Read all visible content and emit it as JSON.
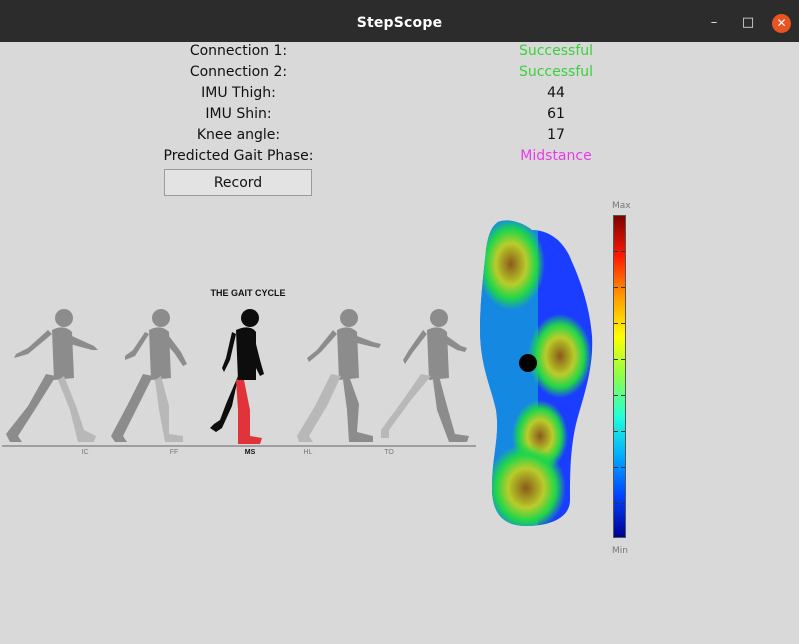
{
  "window": {
    "title": "StepScope",
    "minimize_icon": "minimize-icon",
    "maximize_icon": "maximize-icon",
    "close_icon": "close-icon"
  },
  "status": {
    "rows": [
      {
        "label": "Connection 1:",
        "value": "Successful",
        "value_color": "#3ad13a"
      },
      {
        "label": "Connection 2:",
        "value": "Successful",
        "value_color": "#3ad13a"
      },
      {
        "label": "IMU Thigh:",
        "value": "44"
      },
      {
        "label": "IMU Shin:",
        "value": "61"
      },
      {
        "label": "Knee angle:",
        "value": "17"
      },
      {
        "label": "Predicted Gait Phase:",
        "value": "Midstance",
        "value_color": "#e83ce8"
      }
    ]
  },
  "record_button": {
    "label": "Record"
  },
  "gait_cycle": {
    "title": "THE GAIT CYCLE",
    "phases": [
      "IC",
      "FF",
      "MS",
      "HL",
      "TO"
    ],
    "active_phase": "MS",
    "active_leg_color": "#e0333a"
  },
  "pressure_map": {
    "max_label": "Max",
    "min_label": "Min"
  }
}
